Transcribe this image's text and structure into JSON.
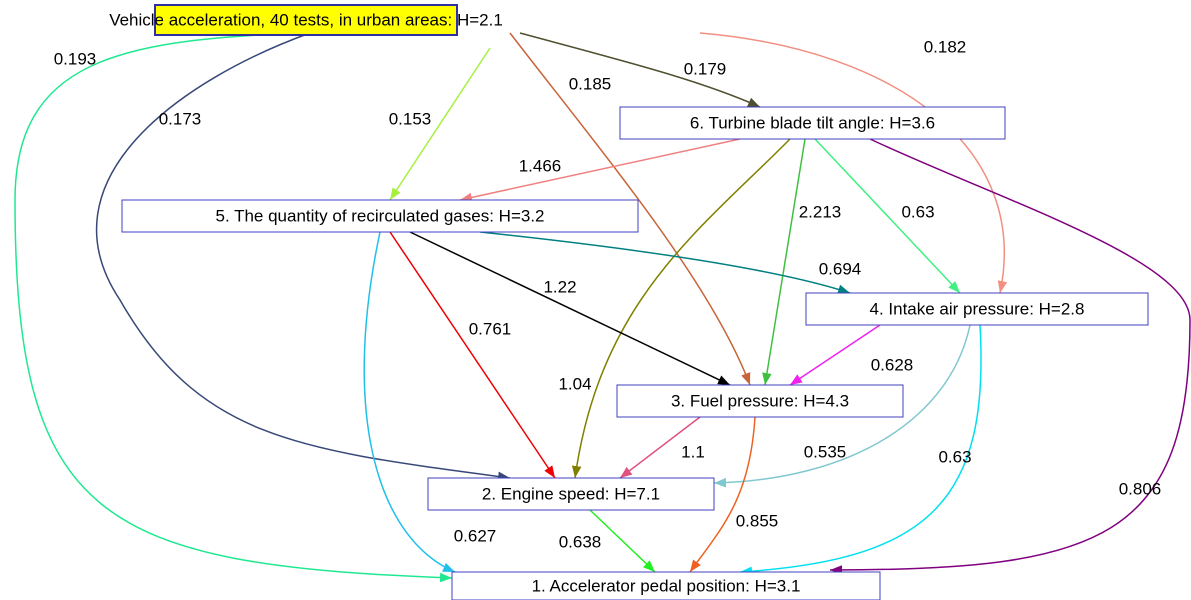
{
  "nodes": [
    {
      "label": "Vehicle acceleration, 40 tests, in urban areas: H=2.1"
    },
    {
      "label": "1. Accelerator pedal position: H=3.1"
    },
    {
      "label": "2. Engine speed: H=7.1"
    },
    {
      "label": "3. Fuel pressure: H=4.3"
    },
    {
      "label": "4. Intake air pressure: H=2.8"
    },
    {
      "label": "5. The quantity of recirculated gases: H=3.2"
    },
    {
      "label": "6. Turbine blade tilt angle: H=3.6"
    }
  ],
  "edges": [
    {
      "from": 0,
      "to": 1,
      "label": "0.193",
      "color": "#20e890"
    },
    {
      "from": 0,
      "to": 2,
      "label": "0.173",
      "color": "#384878"
    },
    {
      "from": 0,
      "to": 5,
      "label": "0.153",
      "color": "#a8f040"
    },
    {
      "from": 0,
      "to": 3,
      "label": "0.185",
      "color": "#c86438"
    },
    {
      "from": 0,
      "to": 6,
      "label": "0.179",
      "color": "#505030"
    },
    {
      "from": 0,
      "to": 4,
      "label": "0.182",
      "color": "#f09080"
    },
    {
      "from": 6,
      "to": 5,
      "label": "1.466",
      "color": "#f08080"
    },
    {
      "from": 6,
      "to": 2,
      "label": "1.04",
      "color": "#808000"
    },
    {
      "from": 6,
      "to": 3,
      "label": "2.213",
      "color": "#40c040"
    },
    {
      "from": 6,
      "to": 4,
      "label": "0.63",
      "color": "#40f080"
    },
    {
      "from": 6,
      "to": 1,
      "label": "0.806",
      "color": "#800080"
    },
    {
      "from": 5,
      "to": 4,
      "label": "0.694",
      "color": "#008080"
    },
    {
      "from": 5,
      "to": 3,
      "label": "1.22",
      "color": "#000000"
    },
    {
      "from": 5,
      "to": 2,
      "label": "0.761",
      "color": "#f00000"
    },
    {
      "from": 5,
      "to": 1,
      "label": "0.627",
      "color": "#20c0e8"
    },
    {
      "from": 4,
      "to": 3,
      "label": "0.628",
      "color": "#f020f0"
    },
    {
      "from": 4,
      "to": 2,
      "label": "0.535",
      "color": "#80c8d0"
    },
    {
      "from": 4,
      "to": 1,
      "label": "0.63",
      "color": "#00e0f0"
    },
    {
      "from": 3,
      "to": 2,
      "label": "1.1",
      "color": "#e05080"
    },
    {
      "from": 3,
      "to": 1,
      "label": "0.855",
      "color": "#f06020"
    },
    {
      "from": 2,
      "to": 1,
      "label": "0.638",
      "color": "#20f020"
    }
  ]
}
